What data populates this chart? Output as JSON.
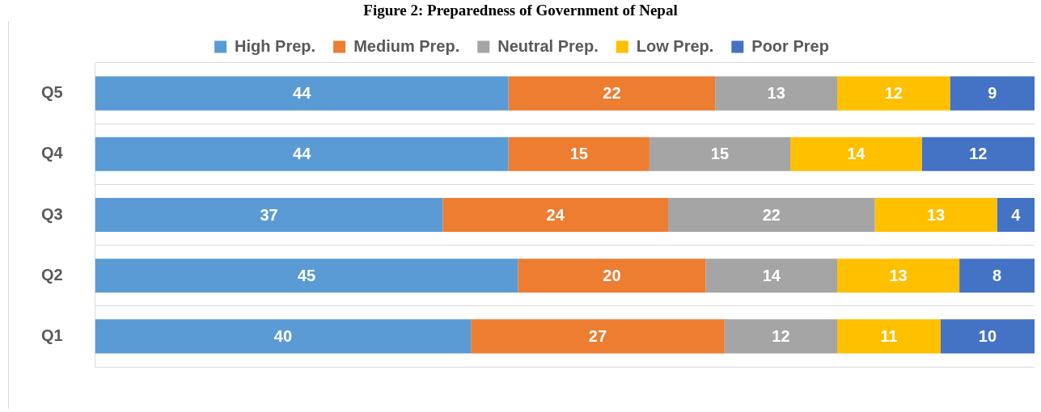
{
  "chart_data": {
    "type": "bar",
    "orientation": "horizontal",
    "stacked": true,
    "xlim": [
      0,
      100
    ],
    "tick_labels": "y",
    "title": "Figure 2: Preparedness of Government of Nepal",
    "categories": [
      "Q5",
      "Q4",
      "Q3",
      "Q2",
      "Q1"
    ],
    "series": [
      {
        "name": "High Prep.",
        "color": "#5b9bd5",
        "values": [
          44,
          44,
          37,
          45,
          40
        ]
      },
      {
        "name": "Medium Prep.",
        "color": "#ed7d31",
        "values": [
          22,
          15,
          24,
          20,
          27
        ]
      },
      {
        "name": "Neutral Prep.",
        "color": "#a5a5a5",
        "values": [
          13,
          15,
          22,
          14,
          12
        ]
      },
      {
        "name": "Low Prep.",
        "color": "#ffc000",
        "values": [
          12,
          14,
          13,
          13,
          11
        ]
      },
      {
        "name": "Poor Prep",
        "color": "#4472c4",
        "values": [
          9,
          12,
          4,
          8,
          10
        ]
      }
    ],
    "data_labels": true,
    "grid": "y",
    "legend": "top"
  }
}
